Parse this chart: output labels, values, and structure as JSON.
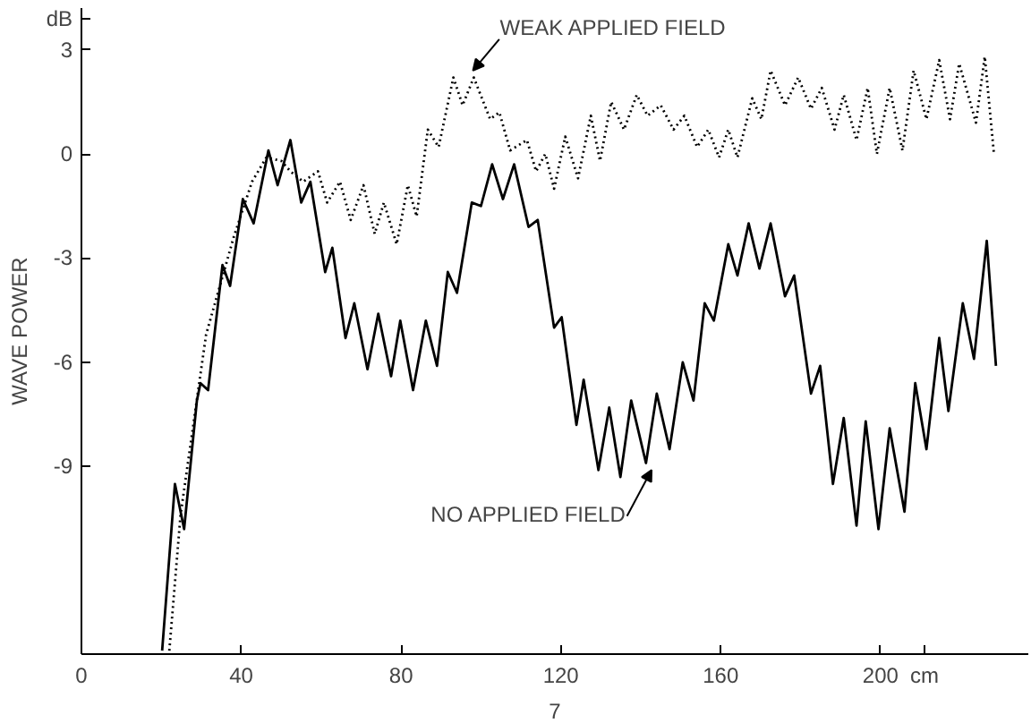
{
  "chart_data": {
    "type": "line",
    "xlabel": "7",
    "ylabel": "WAVE POWER",
    "xlim": [
      0,
      237
    ],
    "ylim": [
      -14.4,
      4.2
    ],
    "xticks": [
      0,
      40,
      80,
      120,
      160,
      200,
      {
        "value": 211,
        "label": "cm"
      }
    ],
    "yticks": [
      3,
      0,
      -3,
      -6,
      -9,
      {
        "value": 3.9,
        "label": "dB"
      }
    ],
    "marker": "none",
    "annotations": [
      {
        "text": "WEAK APPLIED FIELD",
        "x": 98,
        "y": 2.4
      },
      {
        "text": "NO APPLIED FIELD",
        "x": 142.7,
        "y": -9.1
      }
    ],
    "series": [
      {
        "color": "#000000",
        "line_style": "solid",
        "x": [
          20.2,
          23.4,
          25.7,
          28.9,
          29.8,
          31.7,
          35.3,
          37.2,
          40.4,
          43.1,
          46.8,
          49.1,
          52.3,
          55.0,
          57.3,
          61.0,
          62.8,
          66.1,
          68.3,
          71.6,
          74.3,
          77.5,
          79.8,
          83.0,
          86.2,
          89.0,
          91.7,
          94.0,
          97.7,
          100.0,
          102.8,
          105.5,
          108.3,
          111.9,
          114.2,
          118.3,
          120.2,
          123.9,
          125.7,
          129.4,
          132.1,
          134.9,
          137.6,
          141.3,
          144.0,
          147.2,
          150.5,
          153.2,
          156.0,
          158.3,
          161.9,
          164.2,
          167.0,
          169.7,
          172.5,
          176.1,
          178.4,
          182.6,
          184.9,
          188.1,
          190.8,
          194.0,
          196.3,
          199.5,
          202.3,
          206.0,
          208.7,
          211.5,
          214.7,
          217.0,
          220.6,
          223.4,
          226.6,
          228.9
        ],
        "values": [
          -14.3,
          -9.5,
          -10.8,
          -7.1,
          -6.6,
          -6.8,
          -3.2,
          -3.8,
          -1.3,
          -2.0,
          0.1,
          -0.9,
          0.4,
          -1.4,
          -0.8,
          -3.4,
          -2.7,
          -5.3,
          -4.3,
          -6.2,
          -4.6,
          -6.4,
          -4.8,
          -6.8,
          -4.8,
          -6.1,
          -3.4,
          -4.0,
          -1.4,
          -1.5,
          -0.3,
          -1.3,
          -0.3,
          -2.1,
          -1.9,
          -5.0,
          -4.7,
          -7.8,
          -6.5,
          -9.1,
          -7.3,
          -9.3,
          -7.1,
          -8.9,
          -6.9,
          -8.5,
          -6.0,
          -7.1,
          -4.3,
          -4.8,
          -2.6,
          -3.5,
          -2.0,
          -3.3,
          -2.0,
          -4.1,
          -3.5,
          -6.9,
          -6.1,
          -9.5,
          -7.6,
          -10.7,
          -7.7,
          -10.8,
          -7.9,
          -10.3,
          -6.6,
          -8.5,
          -5.3,
          -7.4,
          -4.3,
          -5.9,
          -2.5,
          -6.1
        ]
      },
      {
        "color": "#000000",
        "line_style": "dotted",
        "x": [
          22.0,
          24.8,
          31.2,
          38.1,
          42.7,
          46.3,
          50.0,
          52.3,
          55.5,
          59.2,
          61.5,
          64.7,
          67.4,
          70.6,
          73.4,
          75.7,
          78.9,
          81.7,
          83.9,
          86.7,
          89.4,
          93.1,
          95.4,
          98.2,
          102.3,
          104.6,
          107.3,
          111.5,
          113.8,
          116.1,
          118.3,
          121.1,
          124.3,
          127.5,
          129.8,
          132.6,
          135.8,
          139.0,
          141.7,
          145.0,
          148.2,
          150.9,
          154.1,
          156.9,
          159.6,
          161.9,
          164.2,
          167.9,
          170.2,
          172.5,
          176.1,
          179.4,
          182.6,
          185.3,
          188.5,
          190.8,
          194.0,
          196.8,
          199.1,
          202.3,
          205.5,
          208.3,
          211.5,
          214.7,
          217.4,
          219.7,
          223.9,
          226.1,
          228.4
        ],
        "values": [
          -14.3,
          -10.4,
          -5.2,
          -2.4,
          -0.8,
          -0.1,
          -0.2,
          -0.5,
          -0.8,
          -0.5,
          -1.4,
          -0.8,
          -1.9,
          -0.9,
          -2.3,
          -1.4,
          -2.6,
          -0.9,
          -1.8,
          0.7,
          0.2,
          2.2,
          1.4,
          2.2,
          1.0,
          1.2,
          0.1,
          0.4,
          -0.5,
          0.0,
          -1.0,
          0.5,
          -0.7,
          1.1,
          -0.2,
          1.5,
          0.7,
          1.7,
          1.1,
          1.4,
          0.7,
          1.1,
          0.2,
          0.7,
          -0.1,
          0.7,
          -0.1,
          1.6,
          1.0,
          2.4,
          1.4,
          2.2,
          1.3,
          1.9,
          0.7,
          1.7,
          0.4,
          1.9,
          0.0,
          1.9,
          0.1,
          2.4,
          1.0,
          2.7,
          1.0,
          2.6,
          0.9,
          2.8,
          0.0
        ]
      }
    ]
  }
}
